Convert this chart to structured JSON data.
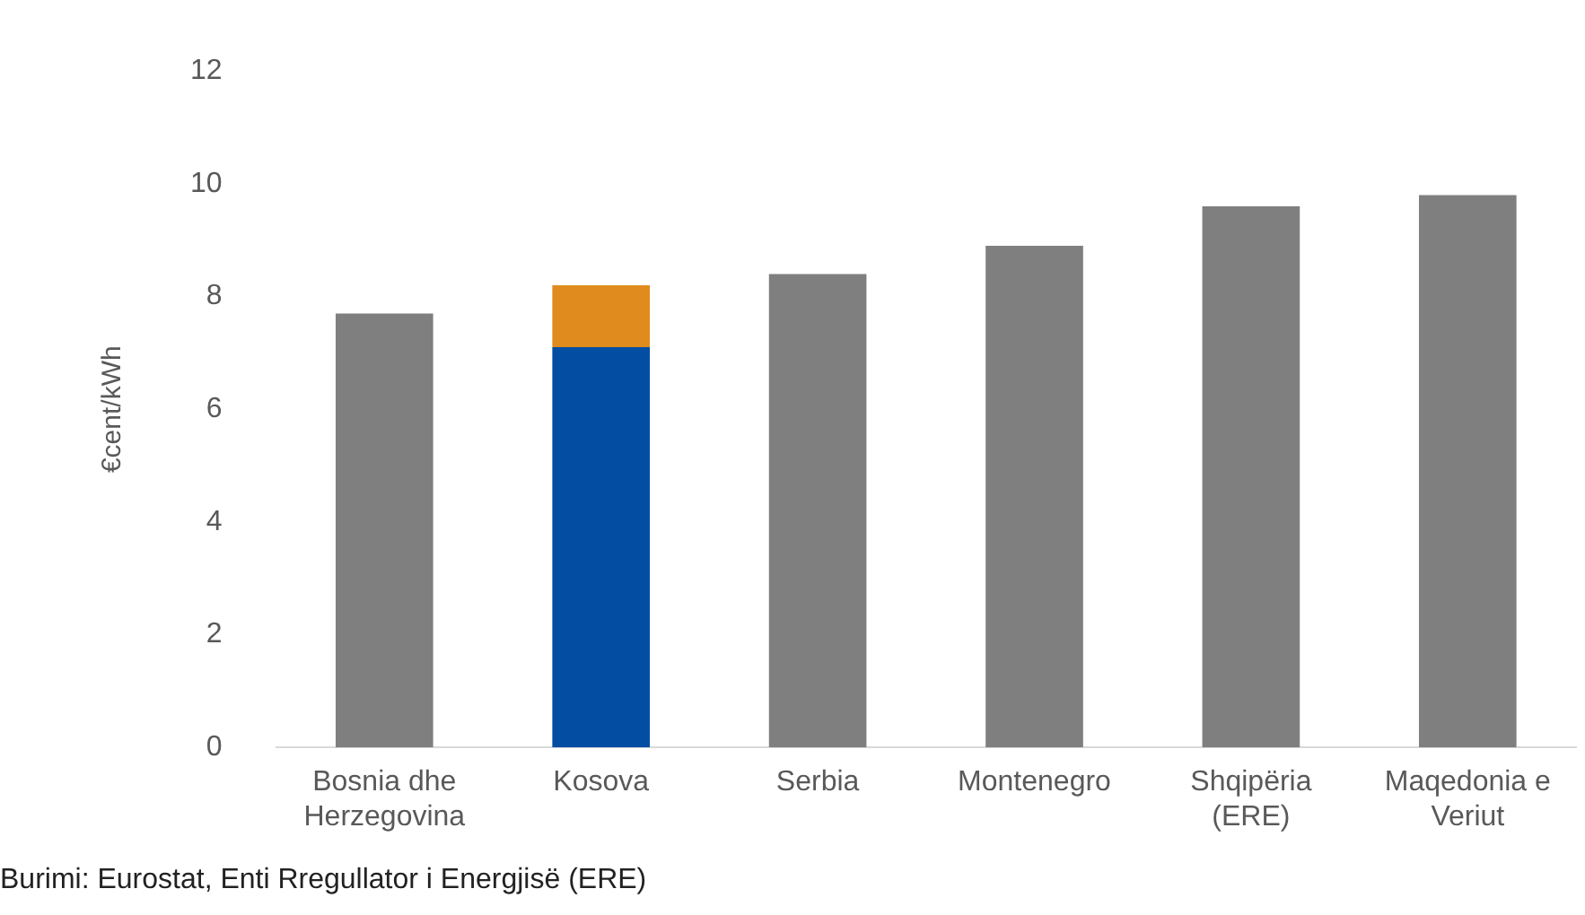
{
  "chart_data": {
    "type": "bar",
    "stacked": true,
    "ylabel": "€cent/kWh",
    "categories": [
      "Bosnia dhe Herzegovina",
      "Kosova",
      "Serbia",
      "Montenegro",
      "Shqipëria (ERE)",
      "Maqedonia e Veriut"
    ],
    "series": [
      {
        "colors": [
          "#7f7f7f",
          "#034ea2",
          "#7f7f7f",
          "#7f7f7f",
          "#7f7f7f",
          "#7f7f7f"
        ],
        "values": [
          7.7,
          7.1,
          8.4,
          8.9,
          9.6,
          9.8
        ]
      },
      {
        "color": "#df8b1d",
        "values": [
          null,
          1.1,
          null,
          null,
          null,
          null
        ]
      }
    ],
    "ylim": [
      0,
      12
    ],
    "yticks": [
      0,
      2,
      4,
      6,
      8,
      10,
      12
    ],
    "grid": false,
    "legend": false,
    "annotations": [
      "Burimi: Eurostat, Enti Rregullator i Energjisë (ERE)"
    ]
  }
}
